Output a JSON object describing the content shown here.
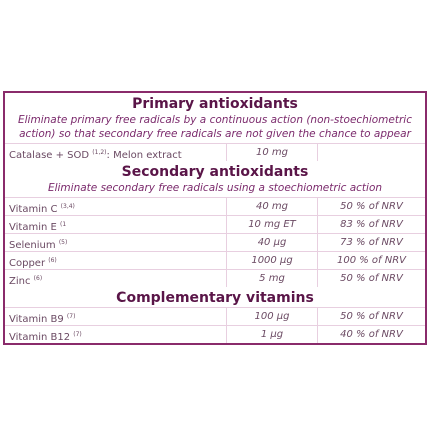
{
  "sections": [
    {
      "title": "Primary antioxidants",
      "subtitle_lines": [
        "Eliminate primary free radicals by a continuous action (non-stoechiometric",
        "action) so that secondary free radicals are not given the chance to appear"
      ],
      "rows": [
        {
          "label": {
            "name": "Catalase + SOD",
            "sup": "(1,2)",
            "suffix": ": Melon extract"
          },
          "amount": "10 mg"
        }
      ]
    },
    {
      "title": "Secondary antioxidants",
      "subtitle_lines": [
        "Eliminate secondary free radicals using a stoechiometric action"
      ],
      "rows": [
        {
          "label": {
            "name": "Vitamin C",
            "sup": "(3,4)"
          },
          "amount": "40 mg",
          "nrv": "50 % of NRV"
        },
        {
          "label": {
            "name": "Vitamin E",
            "sup": "(1"
          },
          "amount": "10 mg ET",
          "nrv": "83 % of NRV"
        },
        {
          "label": {
            "name": "Selenium",
            "sup": "(5)"
          },
          "amount": "40 µg",
          "nrv": "73 % of NRV"
        },
        {
          "label": {
            "name": "Copper",
            "sup": "(6)"
          },
          "amount": "1000 µg",
          "nrv": "100 % of NRV"
        },
        {
          "label": {
            "name": "Zinc",
            "sup": "(6)"
          },
          "amount": "5 mg",
          "nrv": "50 % of NRV"
        }
      ]
    },
    {
      "title": "Complementary vitamins",
      "rows": [
        {
          "label": {
            "name": "Vitamin B9",
            "sup": "(7)"
          },
          "amount": "100 µg",
          "nrv": "50 % of NRV"
        },
        {
          "label": {
            "name": "Vitamin B12",
            "sup": "(7)"
          },
          "amount": "1 µg",
          "nrv": "40 % of NRV"
        }
      ]
    }
  ]
}
